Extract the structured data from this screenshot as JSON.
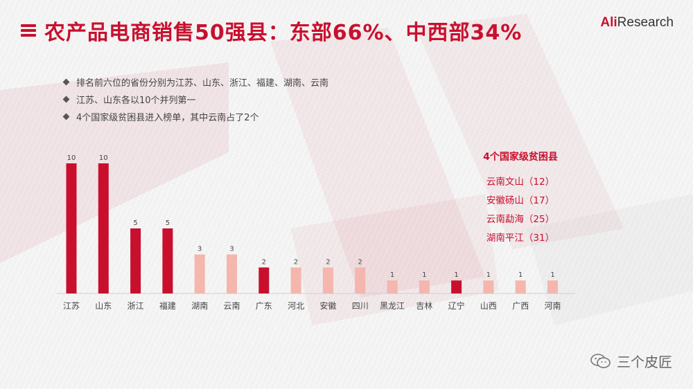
{
  "header": {
    "title": "农产品电商销售50强县：东部66%、中西部34%",
    "brand_logo_accent": "Ali",
    "brand_logo_rest": "Research",
    "menu_icon": "list-icon"
  },
  "bullets": [
    "排名前六位的省份分别为江苏、山东、浙江、福建、湖南、云南",
    "江苏、山东各以10个并列第一",
    "4个国家级贫困县进入榜单，其中云南占了2个"
  ],
  "poverty_counties": {
    "title": "4个国家级贫困县",
    "items": [
      "云南文山（12）",
      "安徽砀山（17）",
      "云南勐海（25）",
      "湖南平江（31）"
    ]
  },
  "footer": {
    "watermark_text": "三个皮匠",
    "icon": "wechat-icon"
  },
  "colors": {
    "accent": "#c8102e",
    "bar_dark": "#c8102e",
    "bar_light": "#f4b6ad"
  },
  "chart_data": {
    "type": "bar",
    "categories": [
      "江苏",
      "山东",
      "浙江",
      "福建",
      "湖南",
      "云南",
      "广东",
      "河北",
      "安徽",
      "四川",
      "黑龙江",
      "吉林",
      "辽宁",
      "山西",
      "广西",
      "河南"
    ],
    "values": [
      10,
      10,
      5,
      5,
      3,
      3,
      2,
      2,
      2,
      2,
      1,
      1,
      1,
      1,
      1,
      1
    ],
    "highlight": [
      true,
      true,
      true,
      true,
      false,
      false,
      true,
      false,
      false,
      false,
      false,
      false,
      true,
      false,
      false,
      false
    ],
    "ylim": [
      0,
      10
    ],
    "grid": false,
    "title": "",
    "xlabel": "",
    "ylabel": ""
  }
}
